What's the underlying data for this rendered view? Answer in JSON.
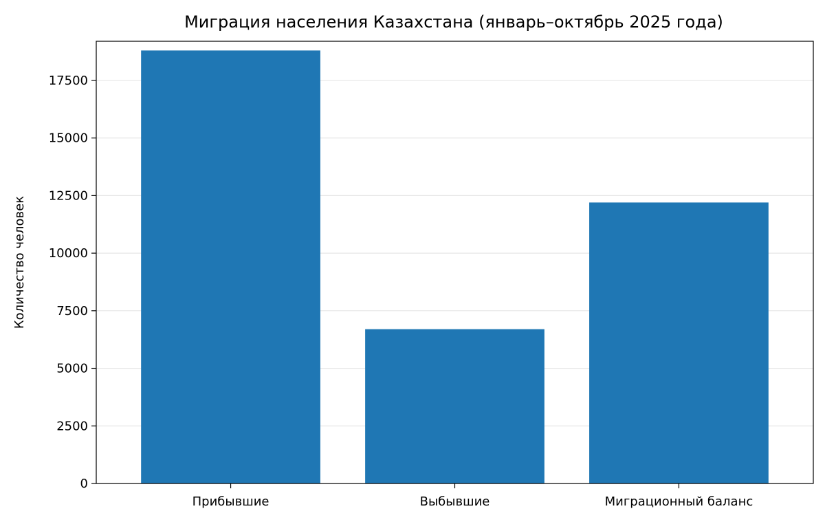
{
  "chart_data": {
    "type": "bar",
    "title": "Миграция населения Казахстана (январь–октябрь 2025 года)",
    "xlabel": "",
    "ylabel": "Количество человек",
    "categories": [
      "Прибывшие",
      "Выбывшие",
      "Миграционный баланс"
    ],
    "values": [
      18800,
      6700,
      12200
    ],
    "ylim": [
      0,
      19200
    ],
    "yticks": [
      0,
      2500,
      5000,
      7500,
      10000,
      12500,
      15000,
      17500
    ],
    "grid": "y",
    "bar_color": "#1f77b4",
    "grid_color": "#e6e6e6"
  }
}
